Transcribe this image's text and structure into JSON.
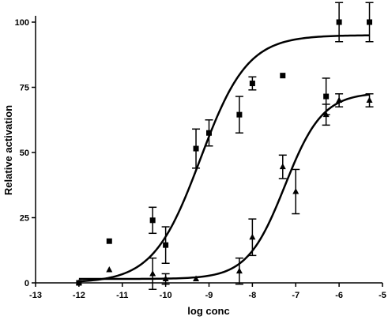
{
  "chart_data": {
    "type": "scatter",
    "title": "",
    "xlabel": "log conc",
    "ylabel": "Relative activation",
    "xlim": [
      -13,
      -5
    ],
    "ylim": [
      0,
      100
    ],
    "x_ticks": [
      -13,
      -12,
      -11,
      -10,
      -9,
      -8,
      -7,
      -6,
      -5
    ],
    "y_ticks": [
      0,
      25,
      50,
      75,
      100
    ],
    "grid": false,
    "legend": "none",
    "series": [
      {
        "marker": "square",
        "color": "#000000",
        "points": [
          {
            "x": -12.0,
            "y": 0.0,
            "err": 0
          },
          {
            "x": -11.3,
            "y": 16.0,
            "err": 0
          },
          {
            "x": -10.3,
            "y": 24.0,
            "err": 5.0
          },
          {
            "x": -10.0,
            "y": 14.5,
            "err": 7.0
          },
          {
            "x": -9.3,
            "y": 51.5,
            "err": 7.5
          },
          {
            "x": -9.0,
            "y": 57.5,
            "err": 5.0
          },
          {
            "x": -8.3,
            "y": 64.5,
            "err": 7.0
          },
          {
            "x": -8.0,
            "y": 76.5,
            "err": 2.5
          },
          {
            "x": -7.3,
            "y": 79.5,
            "err": 0
          },
          {
            "x": -6.3,
            "y": 71.5,
            "err": 7.0
          },
          {
            "x": -6.0,
            "y": 100.0,
            "err": 7.5
          },
          {
            "x": -5.3,
            "y": 100.0,
            "err": 7.5
          }
        ],
        "fit": {
          "bottom": 0,
          "top": 95,
          "logEC50": -9.2,
          "hill": 0.8
        }
      },
      {
        "marker": "triangle",
        "color": "#000000",
        "points": [
          {
            "x": -12.0,
            "y": 0.0,
            "err": 0
          },
          {
            "x": -11.3,
            "y": 5.0,
            "err": 0
          },
          {
            "x": -10.3,
            "y": 3.5,
            "err": 6.0
          },
          {
            "x": -10.0,
            "y": 1.5,
            "err": 2.0
          },
          {
            "x": -9.3,
            "y": 1.5,
            "err": 0
          },
          {
            "x": -8.3,
            "y": 4.5,
            "err": 5.0
          },
          {
            "x": -8.0,
            "y": 17.5,
            "err": 7.0
          },
          {
            "x": -7.3,
            "y": 44.5,
            "err": 4.5
          },
          {
            "x": -7.0,
            "y": 35.0,
            "err": 8.5
          },
          {
            "x": -6.3,
            "y": 64.5,
            "err": 4.0
          },
          {
            "x": -6.0,
            "y": 70.0,
            "err": 2.5
          },
          {
            "x": -5.3,
            "y": 70.0,
            "err": 2.5
          }
        ],
        "fit": {
          "bottom": 1.5,
          "top": 73,
          "logEC50": -7.25,
          "hill": 1.0
        }
      }
    ]
  }
}
